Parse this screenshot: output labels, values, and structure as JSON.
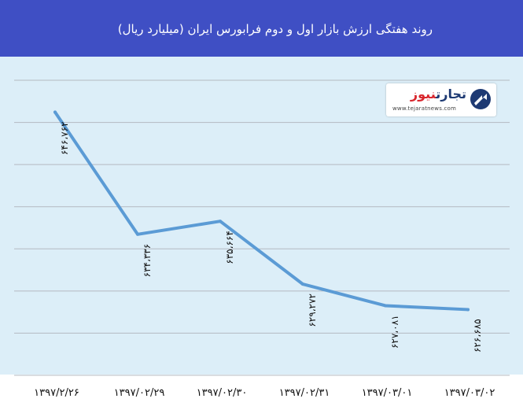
{
  "header": {
    "title": "روند هفتگی ارزش بازار اول و دوم فرابورس  ایران (میلیارد ریال)"
  },
  "logo": {
    "name_part1": "تجارت",
    "name_part2": "نیوز",
    "url": "www.tejaratnews.com",
    "icon": "tejaratnews-logo-icon"
  },
  "colors": {
    "header": "#3f4fc4",
    "plot_background": "#dceef8",
    "line": "#5b9bd5",
    "gridline": "#b4b9c1"
  },
  "chart_data": {
    "type": "line",
    "categories": [
      "۱۳۹۷/۲/۲۶",
      "۱۳۹۷/۰۲/۲۹",
      "۱۳۹۷/۰۲/۳۰",
      "۱۳۹۷/۰۲/۳۱",
      "۱۳۹۷/۰۳/۰۱",
      "۱۳۹۷/۰۳/۰۲"
    ],
    "values": [
      646762,
      634336,
      635664,
      629272,
      627081,
      626685
    ],
    "value_labels": [
      "۶۴۶،۷۶۲",
      "۶۳۴،۳۳۶",
      "۶۳۵،۶۶۴",
      "۶۲۹،۲۷۲",
      "۶۲۷،۰۸۱",
      "۶۲۶،۶۸۵"
    ],
    "title": "روند هفتگی ارزش بازار اول و دوم فرابورس  ایران (میلیارد ریال)",
    "ylim": [
      620000,
      650000
    ],
    "y_axis_labels_shown": false,
    "grid": true,
    "legend": "none"
  }
}
